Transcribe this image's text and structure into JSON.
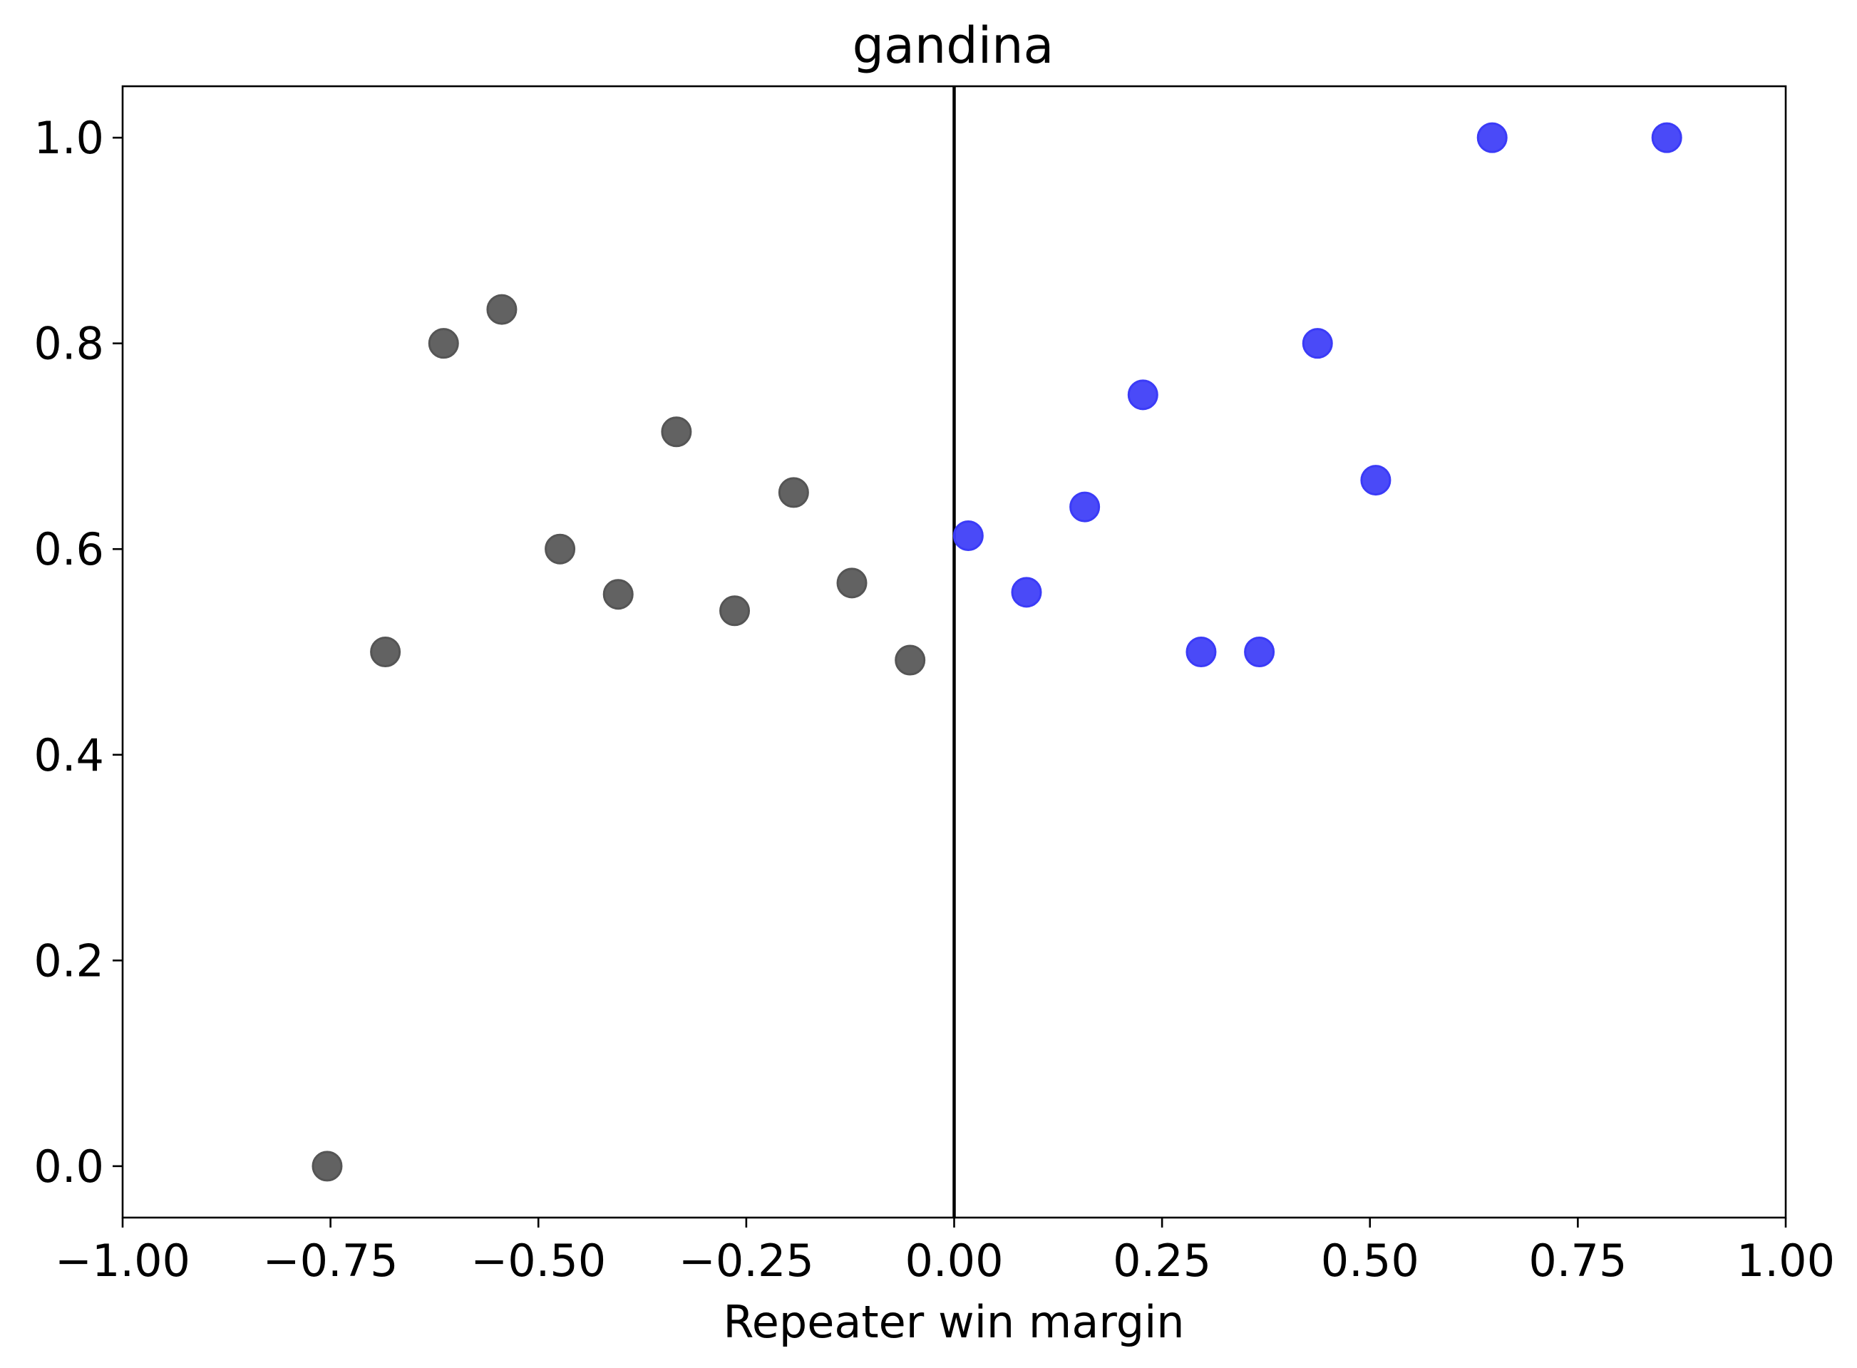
{
  "chart_data": {
    "type": "scatter",
    "title": "gandina",
    "xlabel": "Repeater win margin",
    "ylabel": "",
    "xlim": [
      -1.0,
      1.0
    ],
    "ylim": [
      -0.05,
      1.05
    ],
    "x_ticks": [
      "−1.00",
      "−0.75",
      "−0.50",
      "−0.25",
      "0.00",
      "0.25",
      "0.50",
      "0.75",
      "1.00"
    ],
    "x_tick_values": [
      -1.0,
      -0.75,
      -0.5,
      -0.25,
      0.0,
      0.25,
      0.5,
      0.75,
      1.0
    ],
    "y_ticks": [
      "0.0",
      "0.2",
      "0.4",
      "0.6",
      "0.8",
      "1.0"
    ],
    "y_tick_values": [
      0.0,
      0.2,
      0.4,
      0.6,
      0.8,
      1.0
    ],
    "reference_line_x": 0.0,
    "grid": false,
    "legend": "none",
    "series": [
      {
        "color": "#555555",
        "points": [
          {
            "x": -0.754,
            "y": 0.0
          },
          {
            "x": -0.684,
            "y": 0.5
          },
          {
            "x": -0.614,
            "y": 0.8
          },
          {
            "x": -0.544,
            "y": 0.833
          },
          {
            "x": -0.474,
            "y": 0.6
          },
          {
            "x": -0.404,
            "y": 0.556
          },
          {
            "x": -0.334,
            "y": 0.714
          },
          {
            "x": -0.264,
            "y": 0.54
          },
          {
            "x": -0.193,
            "y": 0.655
          },
          {
            "x": -0.123,
            "y": 0.567
          },
          {
            "x": -0.053,
            "y": 0.492
          }
        ]
      },
      {
        "color": "#3b3bf7",
        "points": [
          {
            "x": 0.017,
            "y": 0.613
          },
          {
            "x": 0.087,
            "y": 0.558
          },
          {
            "x": 0.157,
            "y": 0.641
          },
          {
            "x": 0.227,
            "y": 0.75
          },
          {
            "x": 0.297,
            "y": 0.5
          },
          {
            "x": 0.367,
            "y": 0.5
          },
          {
            "x": 0.437,
            "y": 0.8
          },
          {
            "x": 0.507,
            "y": 0.667
          },
          {
            "x": 0.647,
            "y": 1.0
          },
          {
            "x": 0.857,
            "y": 1.0
          }
        ]
      }
    ]
  }
}
